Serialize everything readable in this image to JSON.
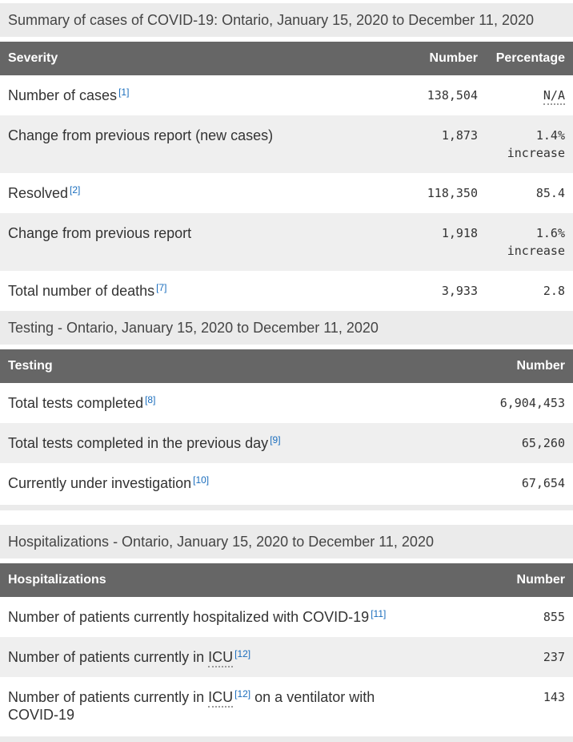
{
  "colors": {
    "header_bg": "#666666",
    "header_text": "#ffffff",
    "caption_bg": "#ebebeb",
    "row_stripe_bg": "#efefef",
    "link": "#1a6dbd",
    "text": "#333333"
  },
  "summary_table": {
    "caption": "Summary of cases of COVID-19: Ontario, January 15, 2020 to December 11, 2020",
    "headers": {
      "col1": "Severity",
      "col2": "Number",
      "col3": "Percentage"
    },
    "rows": [
      {
        "label": "Number of cases",
        "footnote": "[1]",
        "number": "138,504",
        "percentage": "N/A"
      },
      {
        "label": "Change from previous report (new cases)",
        "number": "1,873",
        "percentage": "1.4%",
        "percentage_note": "increase"
      },
      {
        "label": "Resolved",
        "footnote": "[2]",
        "number": "118,350",
        "percentage": "85.4"
      },
      {
        "label": "Change from previous report",
        "number": "1,918",
        "percentage": "1.6%",
        "percentage_note": "increase"
      },
      {
        "label": "Total number of deaths",
        "footnote": "[7]",
        "number": "3,933",
        "percentage": "2.8"
      }
    ]
  },
  "testing_table": {
    "caption": "Testing - Ontario, January 15, 2020 to December 11, 2020",
    "headers": {
      "col1": "Testing",
      "col2": "Number"
    },
    "rows": [
      {
        "label": "Total tests completed",
        "footnote": "[8]",
        "number": "6,904,453"
      },
      {
        "label": "Total tests completed in the previous day",
        "footnote": "[9]",
        "number": "65,260"
      },
      {
        "label": "Currently under investigation",
        "footnote": "[10]",
        "number": "67,654"
      }
    ]
  },
  "hospitalizations_table": {
    "caption": "Hospitalizations - Ontario, January 15, 2020 to December 11, 2020",
    "headers": {
      "col1": "Hospitalizations",
      "col2": "Number"
    },
    "rows": [
      {
        "label": "Number of patients currently hospitalized with COVID-19",
        "footnote": "[11]",
        "number": "855"
      },
      {
        "label_prefix": "Number of patients currently in",
        "abbr": "ICU",
        "footnote": "[12]",
        "number": "237"
      },
      {
        "label_prefix": "Number of patients currently in",
        "abbr": "ICU",
        "footnote": "[12]",
        "label_suffix": "on a ventilator with COVID-19",
        "number": "143"
      }
    ]
  }
}
